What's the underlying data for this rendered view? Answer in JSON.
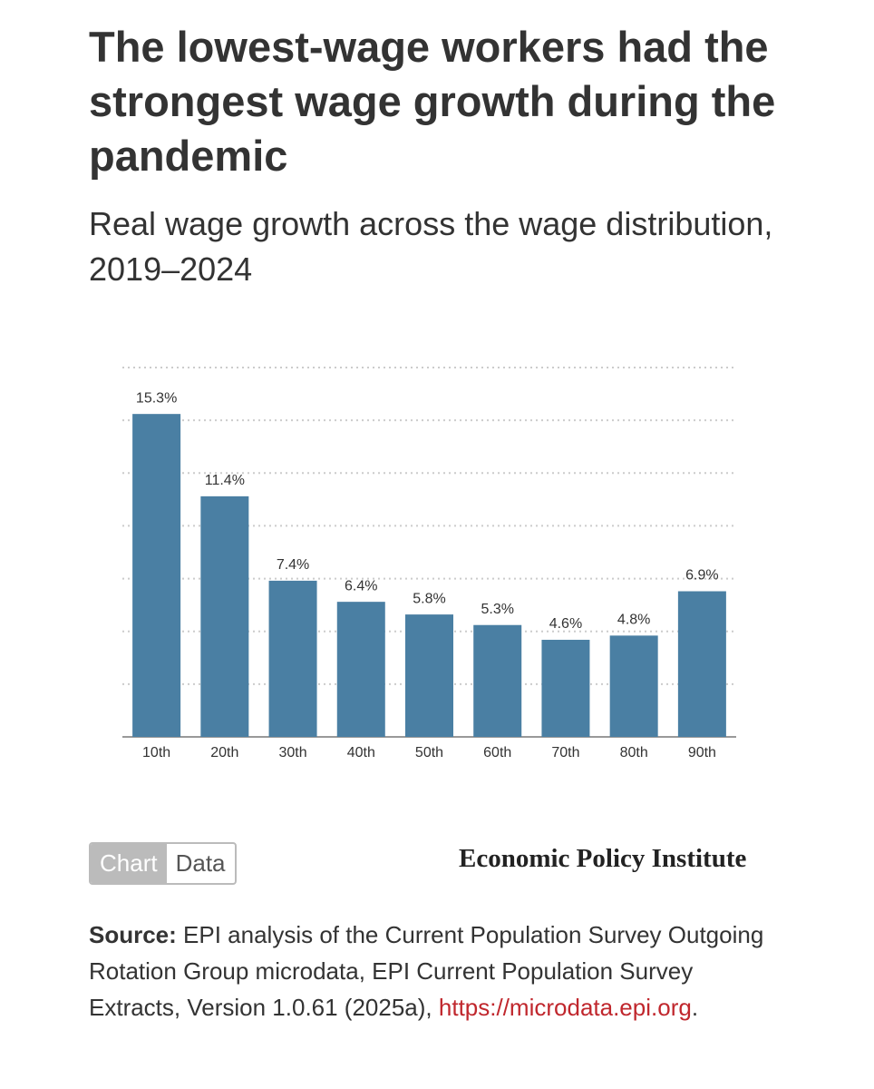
{
  "chart_data": {
    "type": "bar",
    "title": "The lowest-wage workers had the strongest wage growth during the pandemic",
    "subtitle": "Real wage growth across the wage distribution, 2019–2024",
    "categories": [
      "10th",
      "20th",
      "30th",
      "40th",
      "50th",
      "60th",
      "70th",
      "80th",
      "90th"
    ],
    "values": [
      15.3,
      11.4,
      7.4,
      6.4,
      5.8,
      5.3,
      4.6,
      4.8,
      6.9
    ],
    "value_labels": [
      "15.3%",
      "11.4%",
      "7.4%",
      "6.4%",
      "5.8%",
      "5.3%",
      "4.6%",
      "4.8%",
      "6.9%"
    ],
    "color": "#4a7fa3",
    "ylim": [
      0,
      17.5
    ],
    "yticks": [
      0,
      2.5,
      5,
      7.5,
      10,
      12.5,
      15,
      17.5
    ],
    "grid": true
  },
  "tabs": [
    "Chart",
    "Data"
  ],
  "logo": "Economic Policy Institute",
  "source": {
    "label": "Source:",
    "text": "EPI analysis of the Current Population Survey Outgoing Rotation Group microdata, EPI Current Population Survey Extracts, Version 1.0.61 (2025a),",
    "link": "https://microdata.epi.org",
    "end": "."
  }
}
